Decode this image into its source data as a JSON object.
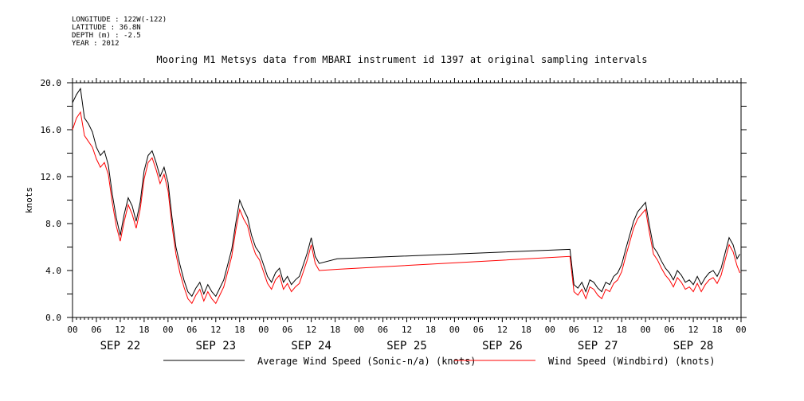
{
  "header": {
    "longitude": "LONGITUDE : 122W(-122)",
    "latitude": "LATITUDE : 36.8N",
    "depth": "DEPTH (m) : -2.5",
    "year": "YEAR : 2012"
  },
  "chart_data": {
    "type": "line",
    "title": "Mooring M1 Metsys data from MBARI instrument id 1397 at original sampling intervals",
    "ylabel": "knots",
    "xlabel": "",
    "ylim": [
      0,
      20
    ],
    "y_ticks": [
      "0.0",
      "4.0",
      "8.0",
      "12.0",
      "16.0",
      "20.0"
    ],
    "x_range_hours": [
      0,
      168
    ],
    "x_tick_labels": [
      "00",
      "06",
      "12",
      "18",
      "00",
      "06",
      "12",
      "18",
      "00",
      "06",
      "12",
      "18",
      "00",
      "06",
      "12",
      "18",
      "00",
      "06",
      "12",
      "18",
      "00",
      "06",
      "12",
      "18",
      "00",
      "06",
      "12",
      "18",
      "00"
    ],
    "date_labels": [
      "SEP 22",
      "SEP 23",
      "SEP 24",
      "SEP 25",
      "SEP 26",
      "SEP 27",
      "SEP 28"
    ],
    "grid": false,
    "legend_position": "bottom",
    "series": [
      {
        "name": "Average Wind Speed (Sonic-n/a) (knots)",
        "color": "#000000",
        "points": [
          [
            0,
            18.3
          ],
          [
            1,
            19.0
          ],
          [
            2,
            19.5
          ],
          [
            3,
            17.0
          ],
          [
            4,
            16.5
          ],
          [
            5,
            15.8
          ],
          [
            6,
            14.5
          ],
          [
            7,
            13.8
          ],
          [
            8,
            14.2
          ],
          [
            9,
            13.0
          ],
          [
            10,
            10.5
          ],
          [
            11,
            8.5
          ],
          [
            12,
            7.0
          ],
          [
            13,
            8.8
          ],
          [
            14,
            10.2
          ],
          [
            15,
            9.5
          ],
          [
            16,
            8.2
          ],
          [
            17,
            9.8
          ],
          [
            18,
            12.5
          ],
          [
            19,
            13.8
          ],
          [
            20,
            14.2
          ],
          [
            21,
            13.2
          ],
          [
            22,
            12.0
          ],
          [
            23,
            12.8
          ],
          [
            24,
            11.5
          ],
          [
            25,
            8.5
          ],
          [
            26,
            6.0
          ],
          [
            27,
            4.5
          ],
          [
            28,
            3.2
          ],
          [
            29,
            2.2
          ],
          [
            30,
            1.8
          ],
          [
            31,
            2.5
          ],
          [
            32,
            3.0
          ],
          [
            33,
            2.0
          ],
          [
            34,
            2.8
          ],
          [
            35,
            2.2
          ],
          [
            36,
            1.8
          ],
          [
            37,
            2.5
          ],
          [
            38,
            3.2
          ],
          [
            39,
            4.5
          ],
          [
            40,
            5.8
          ],
          [
            41,
            8.0
          ],
          [
            42,
            10.0
          ],
          [
            43,
            9.2
          ],
          [
            44,
            8.5
          ],
          [
            45,
            7.0
          ],
          [
            46,
            6.0
          ],
          [
            47,
            5.5
          ],
          [
            48,
            4.5
          ],
          [
            49,
            3.5
          ],
          [
            50,
            3.0
          ],
          [
            51,
            3.8
          ],
          [
            52,
            4.2
          ],
          [
            53,
            3.0
          ],
          [
            54,
            3.5
          ],
          [
            55,
            2.8
          ],
          [
            56,
            3.2
          ],
          [
            57,
            3.5
          ],
          [
            58,
            4.5
          ],
          [
            59,
            5.5
          ],
          [
            60,
            6.8
          ],
          [
            61,
            5.2
          ],
          [
            62,
            4.6
          ],
          [
            66.5,
            5.0
          ],
          [
            125,
            5.8
          ],
          [
            126,
            2.8
          ],
          [
            127,
            2.5
          ],
          [
            128,
            3.0
          ],
          [
            129,
            2.2
          ],
          [
            130,
            3.2
          ],
          [
            131,
            3.0
          ],
          [
            132,
            2.5
          ],
          [
            133,
            2.2
          ],
          [
            134,
            3.0
          ],
          [
            135,
            2.8
          ],
          [
            136,
            3.5
          ],
          [
            137,
            3.8
          ],
          [
            138,
            4.5
          ],
          [
            139,
            5.8
          ],
          [
            140,
            7.0
          ],
          [
            141,
            8.2
          ],
          [
            142,
            9.0
          ],
          [
            143,
            9.4
          ],
          [
            144,
            9.8
          ],
          [
            145,
            7.8
          ],
          [
            146,
            6.0
          ],
          [
            147,
            5.5
          ],
          [
            148,
            4.8
          ],
          [
            149,
            4.2
          ],
          [
            150,
            3.8
          ],
          [
            151,
            3.2
          ],
          [
            152,
            4.0
          ],
          [
            153,
            3.6
          ],
          [
            154,
            3.0
          ],
          [
            155,
            3.2
          ],
          [
            156,
            2.8
          ],
          [
            157,
            3.5
          ],
          [
            158,
            2.8
          ],
          [
            159,
            3.4
          ],
          [
            160,
            3.8
          ],
          [
            161,
            4.0
          ],
          [
            162,
            3.5
          ],
          [
            163,
            4.2
          ],
          [
            164,
            5.5
          ],
          [
            165,
            6.8
          ],
          [
            166,
            6.2
          ],
          [
            167,
            5.0
          ],
          [
            167.7,
            5.4
          ]
        ]
      },
      {
        "name": "Wind Speed (Windbird) (knots)",
        "color": "#ff0000",
        "points": [
          [
            0,
            16.0
          ],
          [
            1,
            17.0
          ],
          [
            2,
            17.5
          ],
          [
            3,
            15.5
          ],
          [
            4,
            15.0
          ],
          [
            5,
            14.5
          ],
          [
            6,
            13.5
          ],
          [
            7,
            12.8
          ],
          [
            8,
            13.2
          ],
          [
            9,
            12.2
          ],
          [
            10,
            9.8
          ],
          [
            11,
            7.8
          ],
          [
            12,
            6.5
          ],
          [
            13,
            8.2
          ],
          [
            14,
            9.6
          ],
          [
            15,
            8.8
          ],
          [
            16,
            7.6
          ],
          [
            17,
            9.2
          ],
          [
            18,
            11.8
          ],
          [
            19,
            13.2
          ],
          [
            20,
            13.6
          ],
          [
            21,
            12.6
          ],
          [
            22,
            11.4
          ],
          [
            23,
            12.2
          ],
          [
            24,
            10.8
          ],
          [
            25,
            7.8
          ],
          [
            26,
            5.4
          ],
          [
            27,
            3.8
          ],
          [
            28,
            2.6
          ],
          [
            29,
            1.6
          ],
          [
            30,
            1.2
          ],
          [
            31,
            1.9
          ],
          [
            32,
            2.4
          ],
          [
            33,
            1.4
          ],
          [
            34,
            2.2
          ],
          [
            35,
            1.6
          ],
          [
            36,
            1.2
          ],
          [
            37,
            1.9
          ],
          [
            38,
            2.6
          ],
          [
            39,
            3.9
          ],
          [
            40,
            5.2
          ],
          [
            41,
            7.4
          ],
          [
            42,
            9.2
          ],
          [
            43,
            8.4
          ],
          [
            44,
            7.8
          ],
          [
            45,
            6.4
          ],
          [
            46,
            5.4
          ],
          [
            47,
            4.9
          ],
          [
            48,
            3.9
          ],
          [
            49,
            2.9
          ],
          [
            50,
            2.4
          ],
          [
            51,
            3.2
          ],
          [
            52,
            3.6
          ],
          [
            53,
            2.4
          ],
          [
            54,
            2.9
          ],
          [
            55,
            2.2
          ],
          [
            56,
            2.6
          ],
          [
            57,
            2.9
          ],
          [
            58,
            3.9
          ],
          [
            59,
            4.9
          ],
          [
            60,
            6.2
          ],
          [
            61,
            4.6
          ],
          [
            62,
            4.0
          ],
          [
            66.5,
            4.1
          ],
          [
            125,
            5.2
          ],
          [
            126,
            2.2
          ],
          [
            127,
            1.9
          ],
          [
            128,
            2.4
          ],
          [
            129,
            1.6
          ],
          [
            130,
            2.6
          ],
          [
            131,
            2.4
          ],
          [
            132,
            1.9
          ],
          [
            133,
            1.6
          ],
          [
            134,
            2.4
          ],
          [
            135,
            2.2
          ],
          [
            136,
            2.9
          ],
          [
            137,
            3.2
          ],
          [
            138,
            3.9
          ],
          [
            139,
            5.2
          ],
          [
            140,
            6.4
          ],
          [
            141,
            7.6
          ],
          [
            142,
            8.4
          ],
          [
            143,
            8.8
          ],
          [
            144,
            9.2
          ],
          [
            145,
            7.2
          ],
          [
            146,
            5.4
          ],
          [
            147,
            4.9
          ],
          [
            148,
            4.2
          ],
          [
            149,
            3.6
          ],
          [
            150,
            3.2
          ],
          [
            151,
            2.6
          ],
          [
            152,
            3.4
          ],
          [
            153,
            3.0
          ],
          [
            154,
            2.4
          ],
          [
            155,
            2.6
          ],
          [
            156,
            2.2
          ],
          [
            157,
            2.9
          ],
          [
            158,
            2.2
          ],
          [
            159,
            2.8
          ],
          [
            160,
            3.2
          ],
          [
            161,
            3.4
          ],
          [
            162,
            2.9
          ],
          [
            163,
            3.6
          ],
          [
            164,
            4.9
          ],
          [
            165,
            6.2
          ],
          [
            166,
            5.6
          ],
          [
            167,
            4.4
          ],
          [
            167.7,
            3.8
          ]
        ]
      }
    ]
  }
}
